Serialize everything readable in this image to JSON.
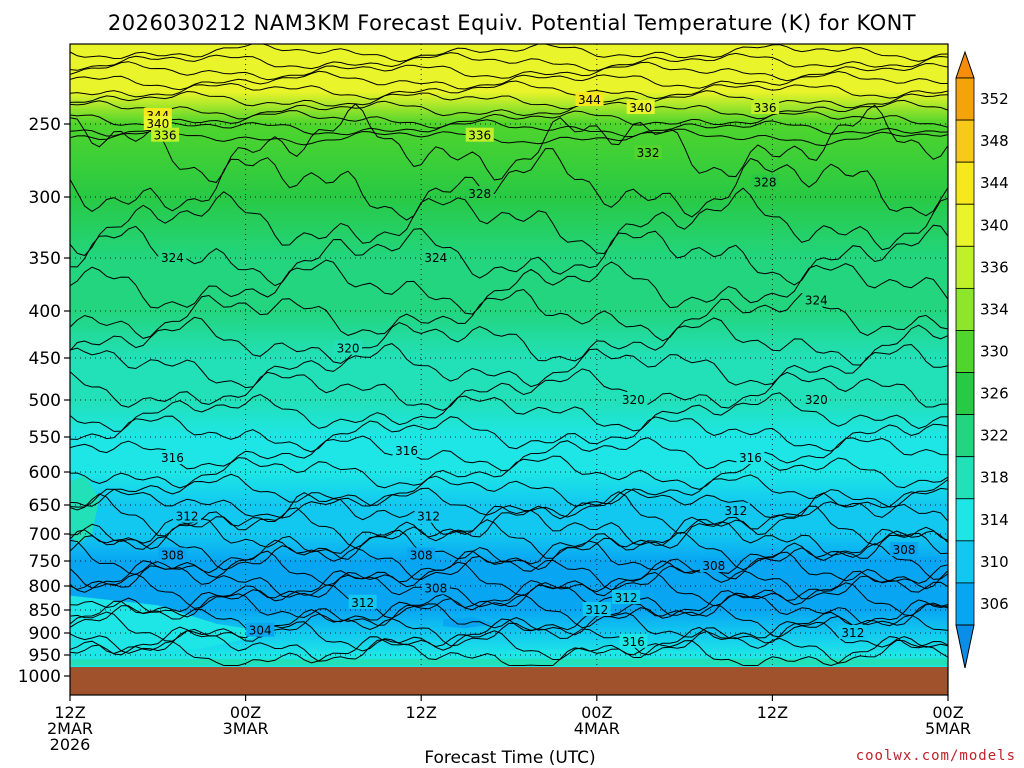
{
  "title": "2026030212 NAM3KM Forecast Equiv. Potential Temperature (K) for KONT",
  "credit": "coolwx.com/models",
  "chart_data": {
    "type": "heatmap",
    "title": "2026030212 NAM3KM Forecast Equiv. Potential Temperature (K) for KONT",
    "xlabel": "Forecast Time (UTC)",
    "ylabel": "",
    "x_ticks": [
      {
        "hour": 0,
        "lines": [
          "12Z",
          "2MAR",
          "2026"
        ]
      },
      {
        "hour": 12,
        "lines": [
          "00Z",
          "3MAR"
        ]
      },
      {
        "hour": 24,
        "lines": [
          "12Z"
        ]
      },
      {
        "hour": 36,
        "lines": [
          "00Z",
          "4MAR"
        ]
      },
      {
        "hour": 48,
        "lines": [
          "12Z"
        ]
      },
      {
        "hour": 60,
        "lines": [
          "00Z",
          "5MAR"
        ]
      }
    ],
    "y_ticks": [
      "250",
      "300",
      "350",
      "400",
      "450",
      "500",
      "550",
      "600",
      "650",
      "700",
      "750",
      "800",
      "850",
      "900",
      "950",
      "1000"
    ],
    "y_tick_values": [
      250,
      300,
      350,
      400,
      450,
      500,
      550,
      600,
      650,
      700,
      750,
      800,
      850,
      900,
      950,
      1000
    ],
    "y_axis": "pressure (hPa), inverted",
    "xlim_hours": [
      0,
      60
    ],
    "colorbar_labels": [
      "352",
      "348",
      "344",
      "340",
      "336",
      "334",
      "330",
      "326",
      "322",
      "318",
      "314",
      "310",
      "306"
    ],
    "colorbar_colors": [
      "#f5a30a",
      "#f7c91a",
      "#f6e81c",
      "#e9f42a",
      "#bff02a",
      "#8de52c",
      "#4fd52c",
      "#28c944",
      "#22d57e",
      "#22e0b8",
      "#1ee6e6",
      "#12c8f0",
      "#08a6f2"
    ],
    "profile_levels": [
      {
        "p": 230,
        "theta_e": 343
      },
      {
        "p": 250,
        "theta_e": 333
      },
      {
        "p": 300,
        "theta_e": 327
      },
      {
        "p": 350,
        "theta_e": 324
      },
      {
        "p": 400,
        "theta_e": 322
      },
      {
        "p": 450,
        "theta_e": 320
      },
      {
        "p": 500,
        "theta_e": 318
      },
      {
        "p": 550,
        "theta_e": 316
      },
      {
        "p": 600,
        "theta_e": 314
      },
      {
        "p": 650,
        "theta_e": 312
      },
      {
        "p": 700,
        "theta_e": 310
      },
      {
        "p": 750,
        "theta_e": 308
      },
      {
        "p": 800,
        "theta_e": 307
      },
      {
        "p": 850,
        "theta_e": 308
      },
      {
        "p": 900,
        "theta_e": 310
      },
      {
        "p": 950,
        "theta_e": 316
      }
    ],
    "contour_labels": [
      {
        "text": "344",
        "hour": 35.5,
        "p": 235
      },
      {
        "text": "340",
        "hour": 39,
        "p": 240
      },
      {
        "text": "336",
        "hour": 47.5,
        "p": 240
      },
      {
        "text": "344",
        "hour": 6,
        "p": 245
      },
      {
        "text": "340",
        "hour": 6,
        "p": 250
      },
      {
        "text": "336",
        "hour": 6.5,
        "p": 258
      },
      {
        "text": "336",
        "hour": 28,
        "p": 258
      },
      {
        "text": "332",
        "hour": 39.5,
        "p": 270
      },
      {
        "text": "328",
        "hour": 28,
        "p": 298
      },
      {
        "text": "328",
        "hour": 47.5,
        "p": 290
      },
      {
        "text": "324",
        "hour": 7,
        "p": 350
      },
      {
        "text": "324",
        "hour": 25,
        "p": 350
      },
      {
        "text": "324",
        "hour": 51,
        "p": 390
      },
      {
        "text": "320",
        "hour": 19,
        "p": 440
      },
      {
        "text": "320",
        "hour": 38.5,
        "p": 500
      },
      {
        "text": "320",
        "hour": 51,
        "p": 500
      },
      {
        "text": "316",
        "hour": 7,
        "p": 580
      },
      {
        "text": "316",
        "hour": 23,
        "p": 570
      },
      {
        "text": "316",
        "hour": 46.5,
        "p": 580
      },
      {
        "text": "312",
        "hour": 8,
        "p": 670
      },
      {
        "text": "312",
        "hour": 24.5,
        "p": 670
      },
      {
        "text": "312",
        "hour": 45.5,
        "p": 660
      },
      {
        "text": "308",
        "hour": 7,
        "p": 740
      },
      {
        "text": "308",
        "hour": 24,
        "p": 740
      },
      {
        "text": "308",
        "hour": 44,
        "p": 760
      },
      {
        "text": "308",
        "hour": 57,
        "p": 730
      },
      {
        "text": "308",
        "hour": 25,
        "p": 805
      },
      {
        "text": "312",
        "hour": 20,
        "p": 835
      },
      {
        "text": "312",
        "hour": 36,
        "p": 850
      },
      {
        "text": "312",
        "hour": 38,
        "p": 825
      },
      {
        "text": "304",
        "hour": 13,
        "p": 895
      },
      {
        "text": "312",
        "hour": 53.5,
        "p": 900
      },
      {
        "text": "316",
        "hour": 38.5,
        "p": 920
      }
    ]
  }
}
